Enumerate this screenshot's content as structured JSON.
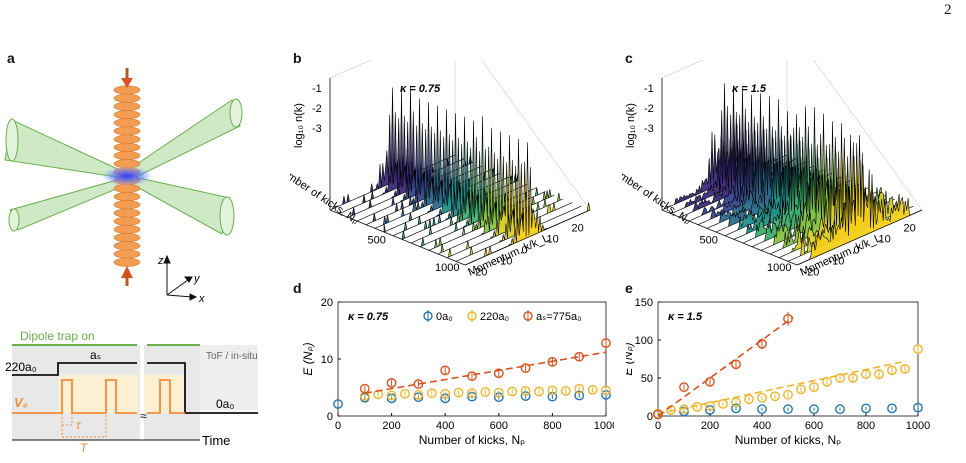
{
  "page_number": "2",
  "panels": {
    "a": {
      "label": "a"
    },
    "b": {
      "label": "b",
      "kappa": "κ = 0.75"
    },
    "c": {
      "label": "c",
      "kappa": "κ = 1.5"
    },
    "d": {
      "label": "d",
      "kappa": "κ = 0.75"
    },
    "e": {
      "label": "e",
      "kappa": "κ = 1.5"
    }
  },
  "setup": {
    "axes": {
      "z": "z",
      "y": "y",
      "x": "x"
    }
  },
  "sequence": {
    "dipole_label": "Dipole trap on",
    "tof_label": "ToF / in-situ",
    "level_high": "220a₀",
    "as_label": "aₛ",
    "level_low": "0a₀",
    "v0": "V₀",
    "tau": "τ",
    "T": "T",
    "time": "Time"
  },
  "colors": {
    "blue": "#1f77b4",
    "yellow": "#f0b429",
    "red": "#d9531e",
    "green": "#6ab04c",
    "orange": "#f28c38"
  },
  "chart_data": [
    {
      "panel": "b",
      "type": "area",
      "zlabel": "log₁₀ n(k)",
      "ylabel": "Number of kicks, Nₚ",
      "xlabel": "Momentum, k/k_L",
      "zticks": [
        "-1",
        "-2",
        "-3"
      ],
      "yticks": [
        "500",
        "1000"
      ],
      "xticks": [
        "-20",
        "-10",
        "0",
        "10",
        "20"
      ],
      "annotation": "κ = 0.75"
    },
    {
      "panel": "c",
      "type": "area",
      "zlabel": "log₁₀ n(k)",
      "ylabel": "Number of kicks, Nₚ",
      "xlabel": "Momentum, k/k_L",
      "zticks": [
        "-1",
        "-2",
        "-3"
      ],
      "yticks": [
        "500",
        "1000"
      ],
      "xticks": [
        "-20",
        "-10",
        "0",
        "10",
        "20"
      ],
      "annotation": "κ = 1.5"
    },
    {
      "panel": "d",
      "type": "scatter",
      "xlabel": "Number of kicks, Nₚ",
      "ylabel": "E (Nₚ)",
      "xlim": [
        0,
        1000
      ],
      "ylim": [
        0,
        20
      ],
      "xticks": [
        "0",
        "200",
        "400",
        "600",
        "800",
        "1000"
      ],
      "yticks": [
        "0",
        "10",
        "20"
      ],
      "annotation": "κ = 0.75",
      "series": [
        {
          "name": "0a₀",
          "color": "#1f77b4",
          "x": [
            0,
            100,
            200,
            300,
            400,
            500,
            600,
            700,
            800,
            900,
            1000
          ],
          "y": [
            2.1,
            3.2,
            3.1,
            3.3,
            3.1,
            3.4,
            3.3,
            3.5,
            3.4,
            3.6,
            3.7
          ]
        },
        {
          "name": "220a₀",
          "color": "#f0b429",
          "x": [
            100,
            150,
            200,
            250,
            300,
            350,
            400,
            450,
            500,
            550,
            600,
            650,
            700,
            750,
            800,
            850,
            900,
            950,
            1000
          ],
          "y": [
            3.5,
            3.8,
            3.6,
            3.9,
            3.7,
            4.0,
            3.9,
            4.1,
            4.0,
            4.2,
            4.1,
            4.3,
            4.4,
            4.3,
            4.5,
            4.4,
            4.8,
            4.6,
            4.5
          ]
        },
        {
          "name": "aₛ=775a₀",
          "color": "#d9531e",
          "x": [
            100,
            200,
            300,
            400,
            500,
            600,
            700,
            800,
            900,
            1000
          ],
          "y": [
            4.8,
            5.8,
            5.6,
            8.0,
            7.0,
            7.5,
            8.4,
            9.5,
            10.4,
            12.8
          ],
          "fit": [
            [
              100,
              4.0
            ],
            [
              1000,
              11.2
            ]
          ]
        }
      ]
    },
    {
      "panel": "e",
      "type": "scatter",
      "xlabel": "Number of kicks, Nₚ",
      "ylabel": "E (Nₚ)",
      "xlim": [
        0,
        1000
      ],
      "ylim": [
        0,
        150
      ],
      "xticks": [
        "0",
        "200",
        "400",
        "600",
        "800",
        "1000"
      ],
      "yticks": [
        "0",
        "50",
        "100",
        "150"
      ],
      "annotation": "κ = 1.5",
      "series": [
        {
          "name": "0a₀",
          "color": "#1f77b4",
          "x": [
            0,
            100,
            200,
            300,
            400,
            500,
            600,
            700,
            800,
            900,
            1000
          ],
          "y": [
            3,
            6,
            8,
            10,
            9,
            9,
            9,
            9,
            10,
            10,
            11
          ]
        },
        {
          "name": "220a₀",
          "color": "#f0b429",
          "x": [
            0,
            50,
            100,
            150,
            200,
            250,
            300,
            350,
            400,
            450,
            500,
            550,
            600,
            650,
            700,
            750,
            800,
            850,
            900,
            950,
            1000
          ],
          "y": [
            3,
            8,
            9,
            12,
            13,
            16,
            18,
            22,
            24,
            26,
            28,
            35,
            38,
            45,
            50,
            50,
            55,
            55,
            60,
            62,
            88
          ],
          "fit": [
            [
              0,
              3
            ],
            [
              950,
              72
            ]
          ]
        },
        {
          "name": "aₛ=775a₀",
          "color": "#d9531e",
          "x": [
            0,
            100,
            200,
            300,
            400,
            500
          ],
          "y": [
            2,
            38,
            45,
            68,
            95,
            128
          ],
          "fit": [
            [
              0,
              0
            ],
            [
              520,
              130
            ]
          ]
        }
      ]
    }
  ]
}
